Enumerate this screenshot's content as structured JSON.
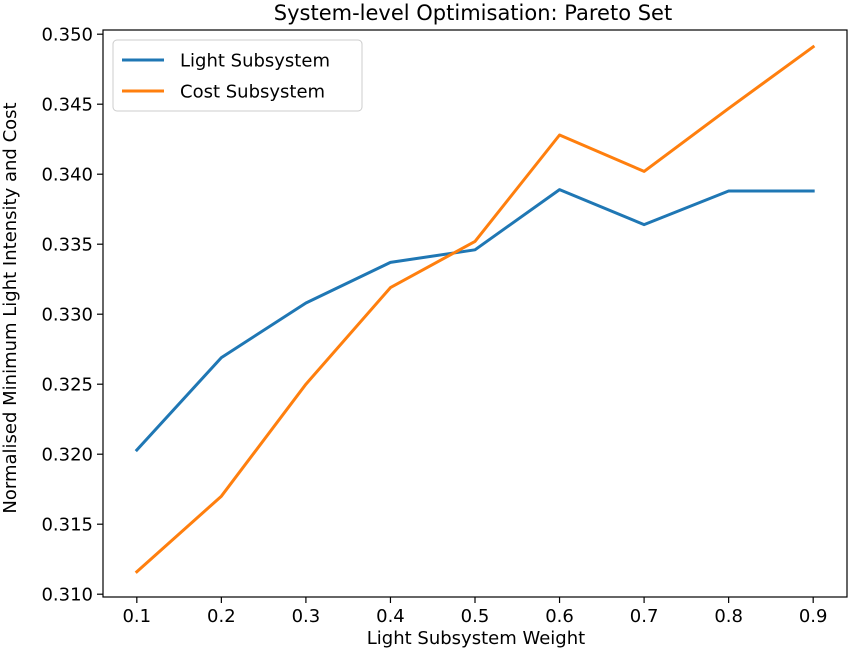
{
  "chart_data": {
    "type": "line",
    "title": "System-level Optimisation: Pareto Set",
    "xlabel": "Light Subsystem Weight",
    "ylabel": "Normalised Minimum Light Intensity and Cost",
    "x": [
      0.1,
      0.2,
      0.3,
      0.4,
      0.5,
      0.6,
      0.7,
      0.8,
      0.9
    ],
    "xlim": [
      0.06,
      0.94
    ],
    "ylim": [
      0.3098,
      0.3503
    ],
    "x_ticks": [
      0.1,
      0.2,
      0.3,
      0.4,
      0.5,
      0.6,
      0.7,
      0.8,
      0.9
    ],
    "x_tick_labels": [
      "0.1",
      "0.2",
      "0.3",
      "0.4",
      "0.5",
      "0.6",
      "0.7",
      "0.8",
      "0.9"
    ],
    "y_ticks": [
      0.31,
      0.315,
      0.32,
      0.325,
      0.33,
      0.335,
      0.34,
      0.345,
      0.35
    ],
    "y_tick_labels": [
      "0.310",
      "0.315",
      "0.320",
      "0.325",
      "0.330",
      "0.335",
      "0.340",
      "0.345",
      "0.350"
    ],
    "grid": false,
    "legend_position": "top-left",
    "series": [
      {
        "name": "Light Subsystem",
        "color": "#1f77b4",
        "values": [
          0.3203,
          0.3269,
          0.3308,
          0.3337,
          0.3346,
          0.3389,
          0.3364,
          0.3388,
          0.3388
        ]
      },
      {
        "name": "Cost Subsystem",
        "color": "#ff7f0e",
        "values": [
          0.3116,
          0.317,
          0.325,
          0.3319,
          0.3352,
          0.3428,
          0.3402,
          0.3447,
          0.3491
        ]
      }
    ]
  }
}
